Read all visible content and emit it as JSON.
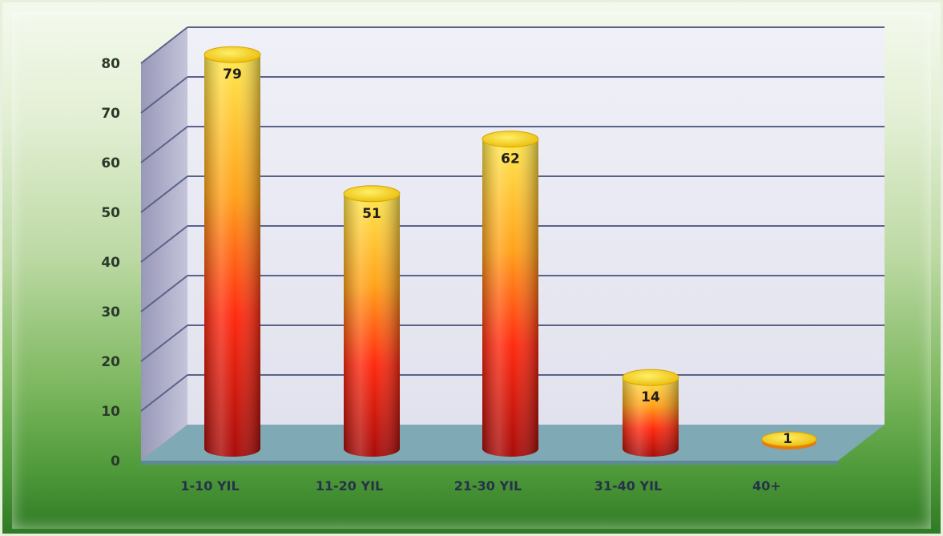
{
  "chart_data": {
    "type": "bar",
    "style": "3d-cylinder",
    "categories": [
      "1-10 YIL",
      "11-20 YIL",
      "21-30 YIL",
      "31-40 YIL",
      "40+"
    ],
    "values": [
      79,
      51,
      62,
      14,
      1
    ],
    "data_labels": [
      "79",
      "51",
      "62",
      "14",
      "1"
    ],
    "yticks": [
      "0",
      "10",
      "20",
      "30",
      "40",
      "50",
      "60",
      "70",
      "80"
    ],
    "ylim": [
      0,
      80
    ],
    "grid": true,
    "legend": "none",
    "colors": {
      "bar_top": "#ffe24a",
      "bar_mid": "#ff8a14",
      "bar_bottom": "#b0100c",
      "back_wall": "#e8e8f4",
      "side_wall": "#a9a9c6",
      "floor": "#7fa9b4",
      "grid": "#5a6288"
    }
  }
}
